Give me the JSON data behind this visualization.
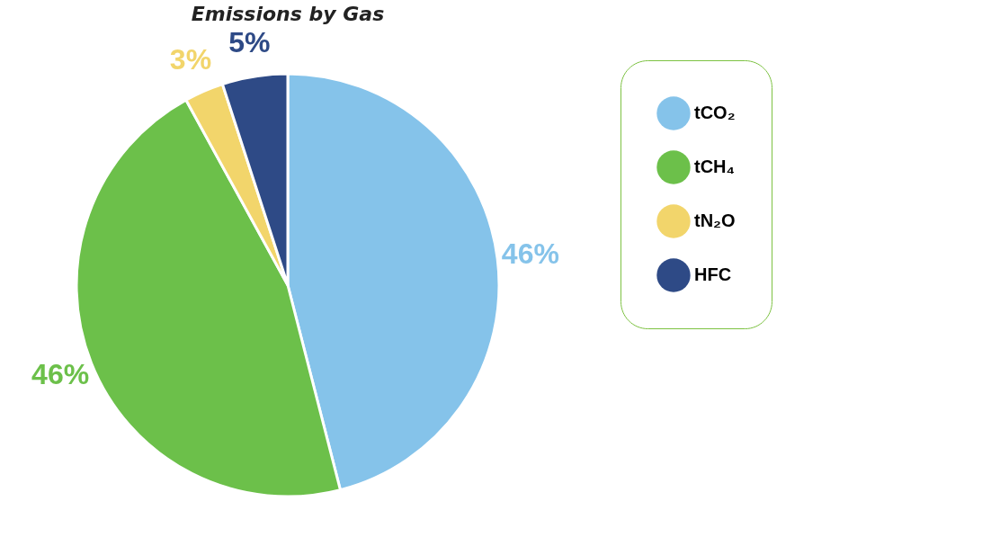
{
  "chart_data": {
    "type": "pie",
    "title": "Emissions by Gas",
    "categories": [
      "tCO₂",
      "tCH₄",
      "tN₂O",
      "HFC"
    ],
    "values": [
      46,
      46,
      3,
      5
    ],
    "colors": [
      "#85c3ea",
      "#6cc04a",
      "#f2d56b",
      "#2e4a86"
    ],
    "value_labels": [
      "46%",
      "46%",
      "3%",
      "5%"
    ],
    "legend": "right"
  }
}
